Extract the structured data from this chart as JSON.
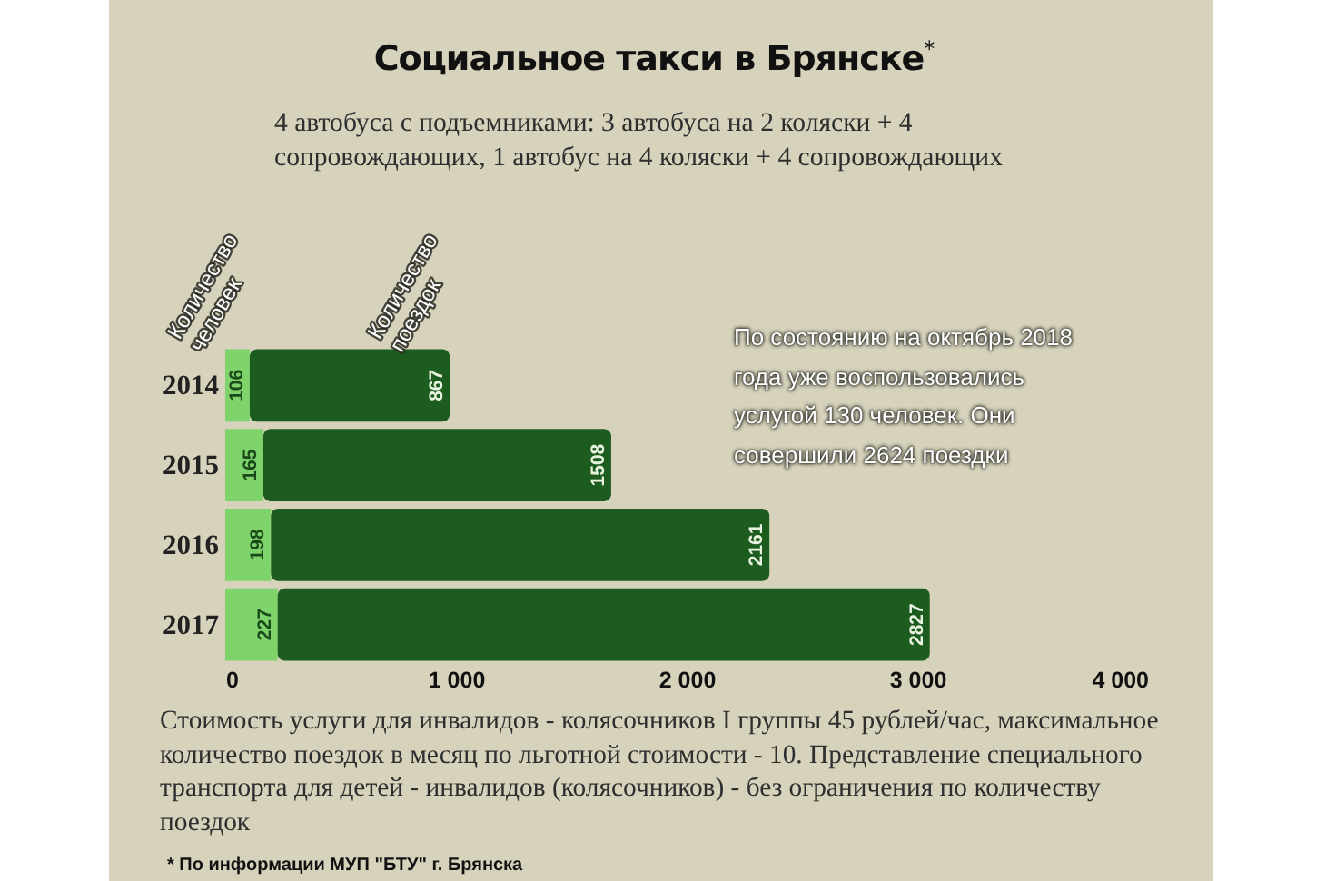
{
  "chart_data": {
    "type": "bar",
    "orientation": "horizontal",
    "stacked": true,
    "title": "Социальное такси в Брянске$^{*}$",
    "subtitle": "4 автобуса с подъемниками: 3 автобуса на 2 коляски + 4 сопровождающих, 1 автобус на 4 коляски + 4 сопровождающих",
    "categories": [
      "2014",
      "2015",
      "2016",
      "2017"
    ],
    "series": [
      {
        "name": "Количество человек",
        "color": "#7fd36b",
        "values": [
          106,
          165,
          198,
          227
        ]
      },
      {
        "name": "Количество поездок",
        "color": "#1c5c1e",
        "values": [
          867,
          1508,
          2161,
          2827
        ]
      }
    ],
    "xlim": [
      0,
      4000
    ],
    "xticks": [
      0,
      {
        "value": 1000,
        "label": "1 000"
      },
      {
        "value": 2000,
        "label": "2 000"
      },
      {
        "value": 3000,
        "label": "3 000"
      },
      {
        "value": 4000,
        "label": "4 000"
      }
    ],
    "data_labels": true,
    "annotations": [
      "По состоянию на октябрь 2018 года уже воспользовались услугой 130 человек. Они совершили 2624 поездки",
      "Стоимость услуги для инвалидов - колясочников I группы 45 рублей/час, максимальное количество поездок в месяц по льготной стоимости - 10. Представление специального транспорта для детей - инвалидов (колясочников) - без ограничения по количеству поездок",
      "* По информации МУП \"БТУ\" г. Брянска"
    ]
  }
}
